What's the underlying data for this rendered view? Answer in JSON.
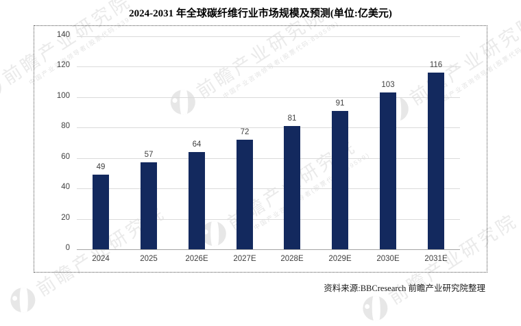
{
  "page": {
    "title": "2024-2031 年全球碳纤维行业市场规模及预测(单位:亿美元)",
    "source_note": "资料来源:BBCresearch 前瞻产业研究院整理"
  },
  "watermark": {
    "brand": "前瞻产业研究院",
    "tagline": "中国产业咨询领导者(股票代码:839599)"
  },
  "chart_data": {
    "type": "bar",
    "title": "2024-2031 年全球碳纤维行业市场规模及预测",
    "unit": "亿美元",
    "categories": [
      "2024",
      "2025",
      "2026E",
      "2027E",
      "2028E",
      "2029E",
      "2030E",
      "2031E"
    ],
    "values": [
      49,
      57,
      64,
      72,
      81,
      91,
      103,
      116
    ],
    "xlabel": "",
    "ylabel": "",
    "ylim": [
      0,
      140
    ],
    "ytick_step": 20,
    "grid": true,
    "legend": false,
    "bar_color": "#13295e",
    "gridline_color": "#dadada",
    "axis_line_color": "#a3a3a3",
    "label_color": "#404040"
  }
}
